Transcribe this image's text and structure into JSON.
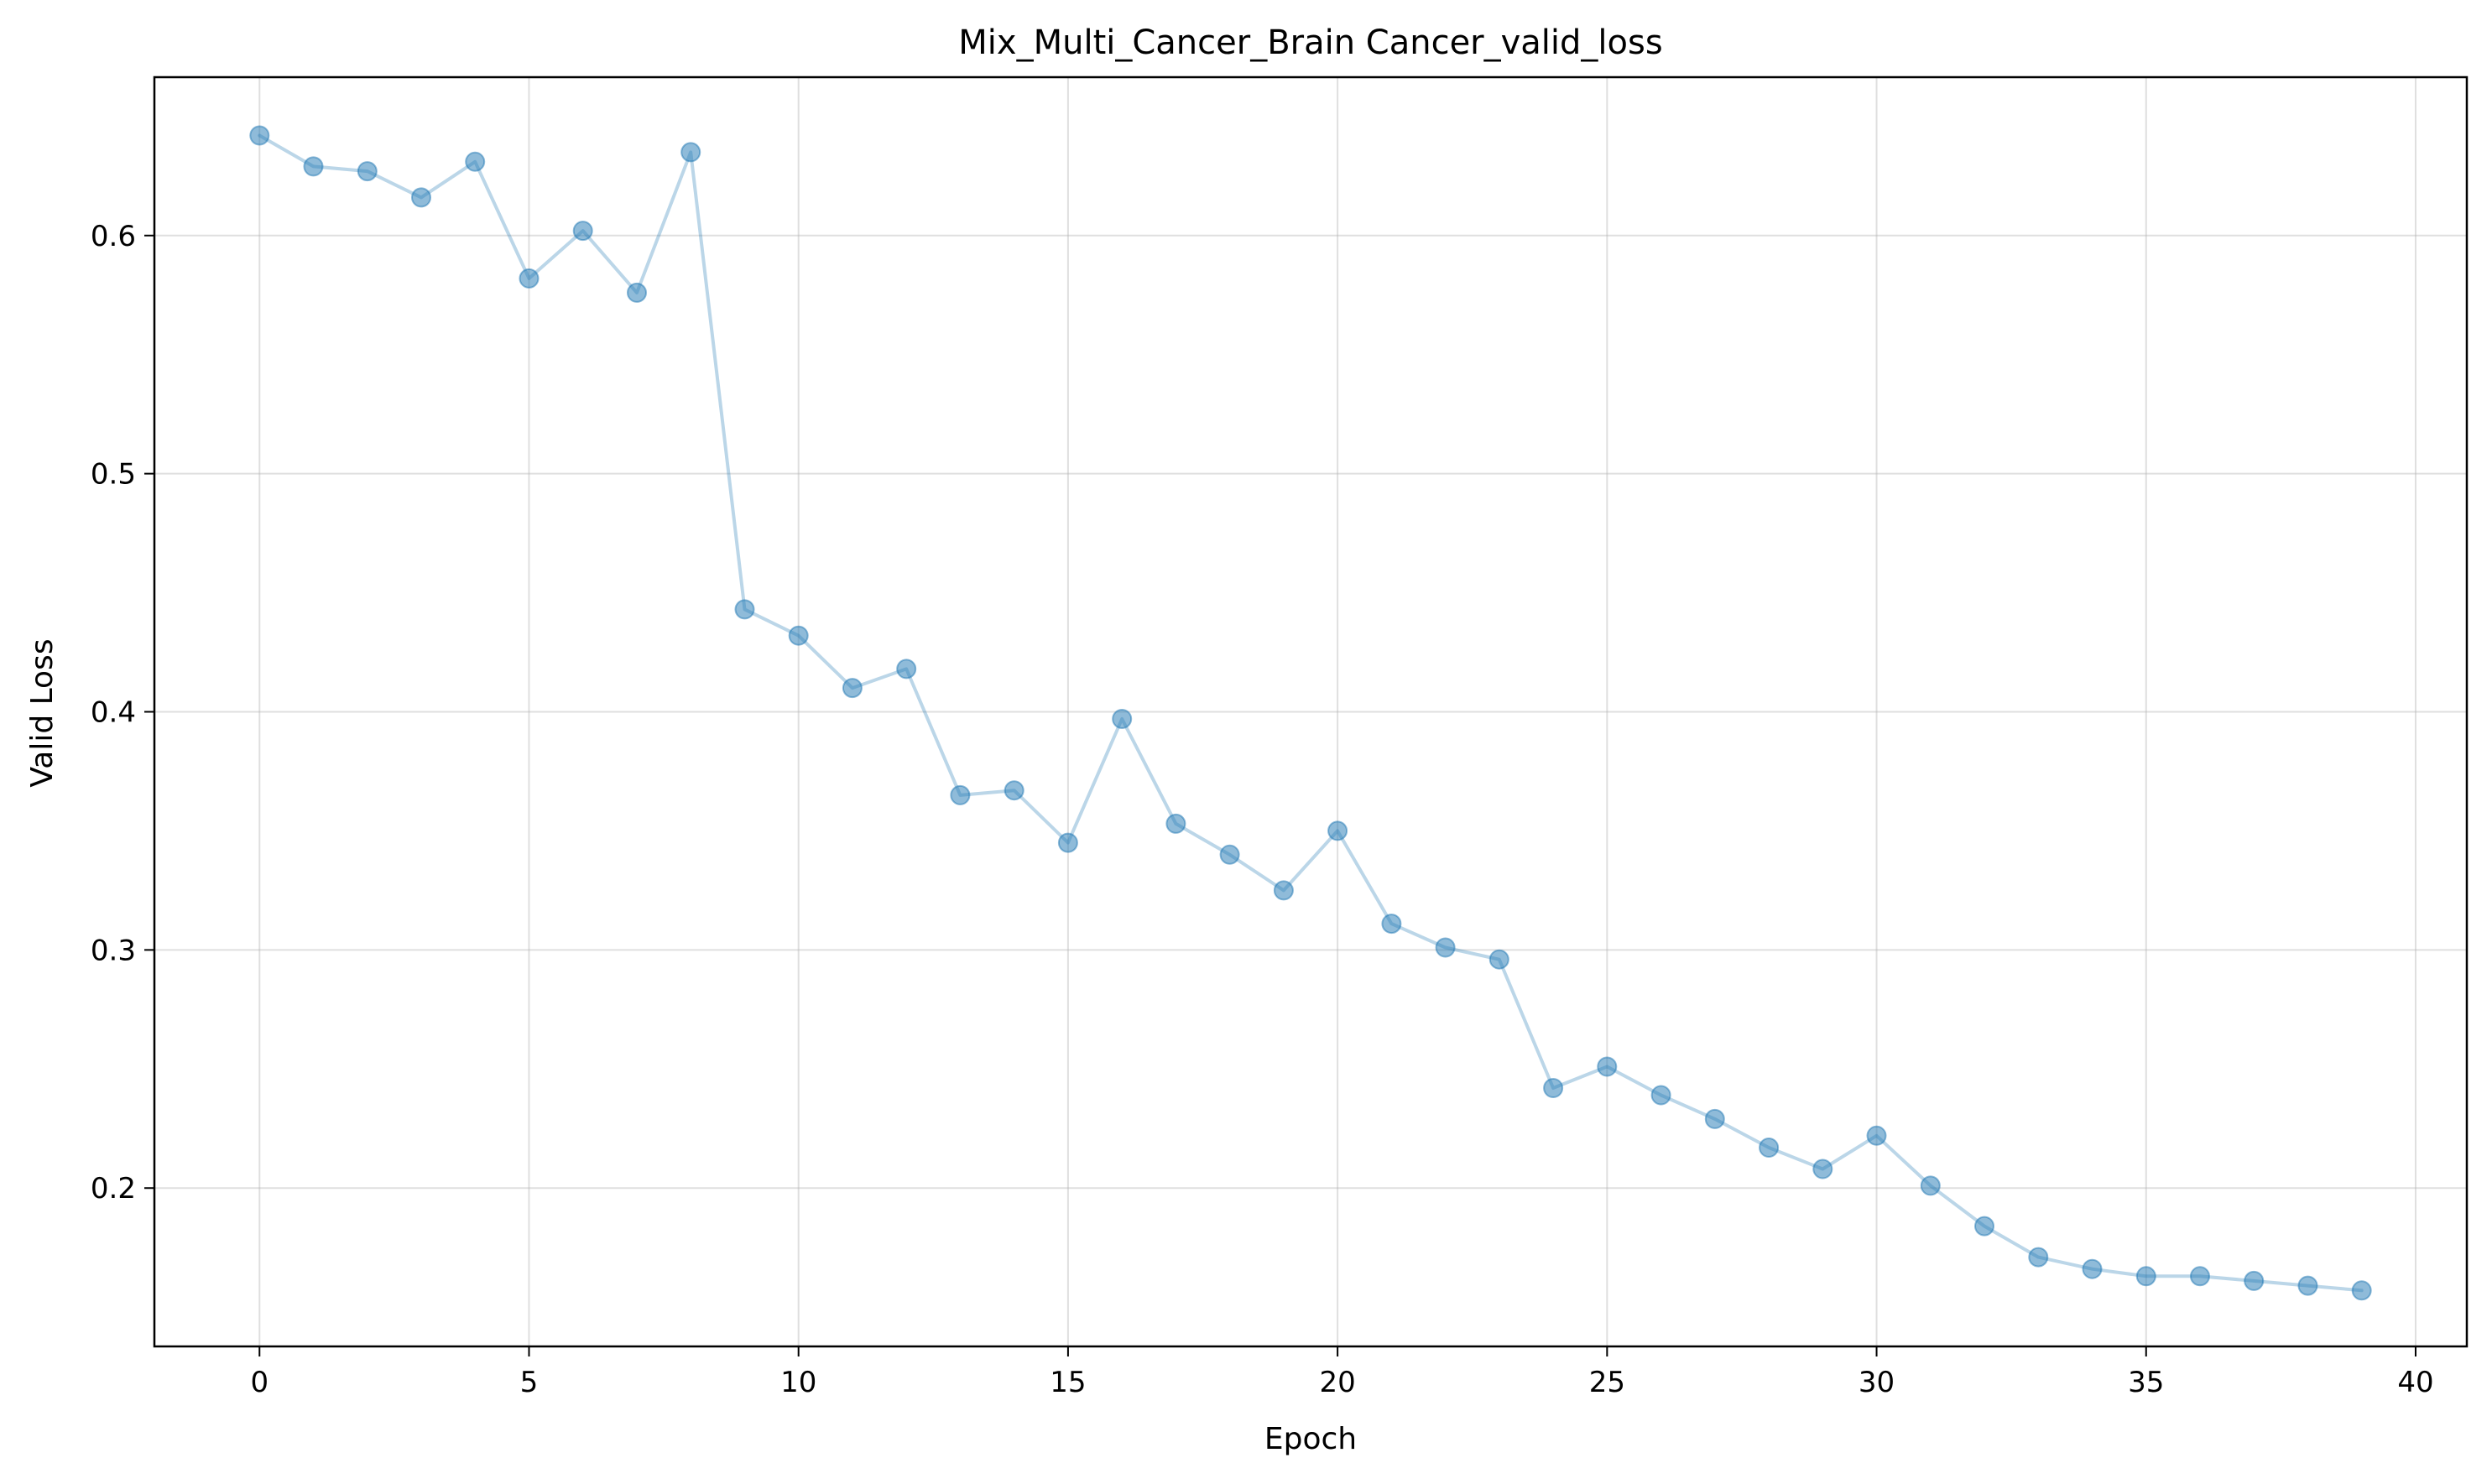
{
  "chart_data": {
    "type": "line",
    "title": "Mix_Multi_Cancer_Brain Cancer_valid_loss",
    "xlabel": "Epoch",
    "ylabel": "Valid Loss",
    "xlim": [
      -1.95,
      40.95
    ],
    "ylim": [
      0.1335,
      0.6665
    ],
    "xticks": [
      0,
      5,
      10,
      15,
      20,
      25,
      30,
      35,
      40
    ],
    "yticks": [
      0.2,
      0.3,
      0.4,
      0.5,
      0.6
    ],
    "xtick_labels": [
      "0",
      "5",
      "10",
      "15",
      "20",
      "25",
      "30",
      "35",
      "40"
    ],
    "ytick_labels": [
      "0.2",
      "0.3",
      "0.4",
      "0.5",
      "0.6"
    ],
    "grid": true,
    "series": [
      {
        "color": "#1f77b4",
        "line_alpha": 0.3,
        "marker": "circle",
        "marker_alpha": 0.5,
        "x": [
          0,
          1,
          2,
          3,
          4,
          5,
          6,
          7,
          8,
          9,
          10,
          11,
          12,
          13,
          14,
          15,
          16,
          17,
          18,
          19,
          20,
          21,
          22,
          23,
          24,
          25,
          26,
          27,
          28,
          29,
          30,
          31,
          32,
          33,
          34,
          35,
          36,
          37,
          38,
          39
        ],
        "y": [
          0.642,
          0.629,
          0.627,
          0.616,
          0.631,
          0.582,
          0.602,
          0.576,
          0.635,
          0.443,
          0.432,
          0.41,
          0.418,
          0.365,
          0.367,
          0.345,
          0.397,
          0.353,
          0.34,
          0.325,
          0.35,
          0.311,
          0.301,
          0.296,
          0.242,
          0.251,
          0.239,
          0.229,
          0.217,
          0.208,
          0.222,
          0.201,
          0.184,
          0.171,
          0.166,
          0.163,
          0.163,
          0.161,
          0.159,
          0.157
        ]
      }
    ]
  }
}
